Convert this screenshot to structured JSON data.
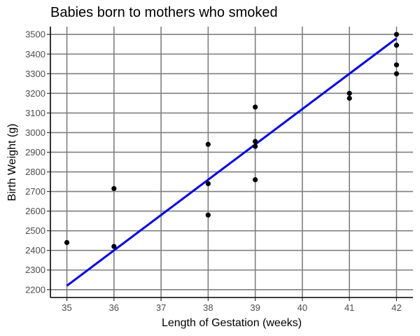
{
  "chart_data": {
    "type": "scatter",
    "title": "Babies born to mothers who smoked",
    "xlabel": "Length of Gestation (weeks)",
    "ylabel": "Birth Weight (g)",
    "xlim": [
      34.65,
      42.35
    ],
    "ylim": [
      2160,
      3540
    ],
    "x_ticks": [
      35,
      36,
      37,
      38,
      39,
      40,
      41,
      42
    ],
    "y_ticks": [
      2200,
      2300,
      2400,
      2500,
      2600,
      2700,
      2800,
      2900,
      3000,
      3100,
      3200,
      3300,
      3400,
      3500
    ],
    "grid": true,
    "points": [
      {
        "x": 35,
        "y": 2440
      },
      {
        "x": 36,
        "y": 2715
      },
      {
        "x": 36,
        "y": 2420
      },
      {
        "x": 38,
        "y": 2940
      },
      {
        "x": 38,
        "y": 2740
      },
      {
        "x": 38,
        "y": 2580
      },
      {
        "x": 39,
        "y": 3130
      },
      {
        "x": 39,
        "y": 2955
      },
      {
        "x": 39,
        "y": 2930
      },
      {
        "x": 39,
        "y": 2760
      },
      {
        "x": 41,
        "y": 3200
      },
      {
        "x": 41,
        "y": 3175
      },
      {
        "x": 42,
        "y": 3500
      },
      {
        "x": 42,
        "y": 3445
      },
      {
        "x": 42,
        "y": 3345
      },
      {
        "x": 42,
        "y": 3300
      }
    ],
    "fit_line": {
      "x": [
        35,
        42
      ],
      "y": [
        2220,
        3480
      ],
      "color": "#0000ee"
    },
    "point_color": "#000000"
  }
}
